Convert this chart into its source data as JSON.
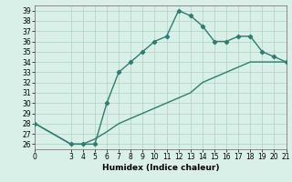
{
  "xlabel": "Humidex (Indice chaleur)",
  "line1_x": [
    0,
    3,
    4,
    5,
    6,
    7,
    8,
    9,
    10,
    11,
    12,
    13,
    14,
    15,
    16,
    17,
    18,
    19,
    20,
    21
  ],
  "line1_y": [
    28,
    26,
    26,
    26,
    30,
    33,
    34,
    35,
    36,
    36.5,
    39,
    38.5,
    37.5,
    36,
    36,
    36.5,
    36.5,
    35,
    34.5,
    34
  ],
  "line2_x": [
    0,
    3,
    4,
    5,
    6,
    7,
    8,
    9,
    10,
    11,
    12,
    13,
    14,
    15,
    16,
    17,
    18,
    19,
    20,
    21
  ],
  "line2_y": [
    28,
    26,
    26,
    26.5,
    27.2,
    28,
    28.5,
    29,
    29.5,
    30,
    30.5,
    31,
    32,
    32.5,
    33,
    33.5,
    34,
    34,
    34,
    34
  ],
  "line_color": "#2e7d6e",
  "bg_color": "#d8f0e8",
  "grid_color": "#b0cfc4",
  "ylim": [
    25.5,
    39.5
  ],
  "xlim": [
    0,
    21
  ],
  "yticks": [
    26,
    27,
    28,
    29,
    30,
    31,
    32,
    33,
    34,
    35,
    36,
    37,
    38,
    39
  ],
  "xticks": [
    0,
    3,
    4,
    5,
    6,
    7,
    8,
    9,
    10,
    11,
    12,
    13,
    14,
    15,
    16,
    17,
    18,
    19,
    20,
    21
  ],
  "marker": "D",
  "marker_size": 2.2,
  "line_width": 1.0,
  "tick_fontsize": 5.5,
  "xlabel_fontsize": 6.5
}
